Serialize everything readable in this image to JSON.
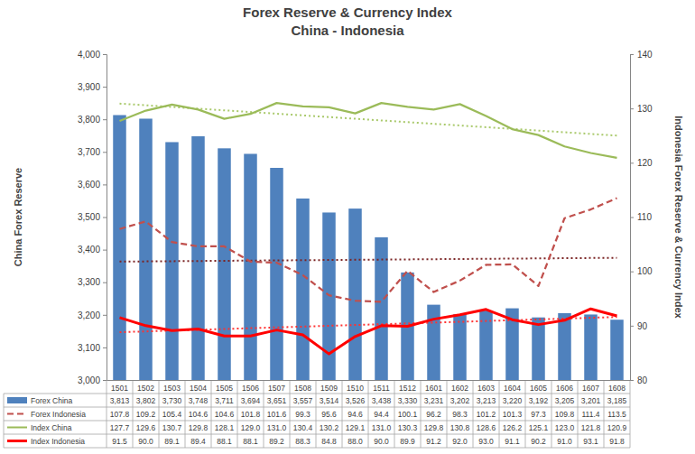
{
  "chart_data": {
    "type": "bar",
    "title": "Forex Reserve & Currency Index",
    "subtitle": "China - Indonesia",
    "y_label": "China Forex Reserve",
    "y2_label": "Indonesia Forex Reserve & Currency Index",
    "categories": [
      "1501",
      "1502",
      "1503",
      "1504",
      "1505",
      "1506",
      "1507",
      "1508",
      "1509",
      "1510",
      "1511",
      "1512",
      "1601",
      "1602",
      "1603",
      "1604",
      "1605",
      "1606",
      "1607",
      "1608"
    ],
    "ylim": [
      3000,
      4000
    ],
    "yticks": [
      {
        "value": 3000,
        "label": "3,000"
      },
      {
        "value": 3100,
        "label": "3,100"
      },
      {
        "value": 3200,
        "label": "3,200"
      },
      {
        "value": 3300,
        "label": "3,300"
      },
      {
        "value": 3400,
        "label": "3,400"
      },
      {
        "value": 3500,
        "label": "3,500"
      },
      {
        "value": 3600,
        "label": "3,600"
      },
      {
        "value": 3700,
        "label": "3,700"
      },
      {
        "value": 3800,
        "label": "3,800"
      },
      {
        "value": 3900,
        "label": "3,900"
      },
      {
        "value": 4000,
        "label": "4,000"
      }
    ],
    "y2lim": [
      80,
      140
    ],
    "y2ticks": [
      80,
      90,
      100,
      110,
      120,
      130,
      140
    ],
    "grid": false,
    "series": [
      {
        "name": "Forex China",
        "type": "bar",
        "color": "#4f81bd",
        "values": [
          3813,
          3802,
          3730,
          3748,
          3711,
          3694,
          3651,
          3557,
          3514,
          3526,
          3438,
          3330,
          3231,
          3202,
          3213,
          3220,
          3192,
          3205,
          3201,
          3185
        ],
        "value_labels": [
          "3,813",
          "3,802",
          "3,730",
          "3,748",
          "3,711",
          "3,694",
          "3,651",
          "3,557",
          "3,514",
          "3,526",
          "3,438",
          "3,330",
          "3,231",
          "3,202",
          "3,213",
          "3,220",
          "3,192",
          "3,205",
          "3,201",
          "3,185"
        ]
      },
      {
        "name": "Forex Indonesia",
        "type": "line",
        "axis": "y2",
        "color": "#c0504d",
        "line_style": "dashed",
        "values": [
          107.8,
          109.2,
          105.4,
          104.6,
          104.6,
          101.8,
          101.6,
          99.3,
          95.6,
          94.6,
          94.4,
          100.1,
          96.2,
          98.3,
          101.2,
          101.3,
          97.3,
          109.8,
          111.4,
          113.5
        ],
        "value_labels": [
          "107.8",
          "109.2",
          "105.4",
          "104.6",
          "104.6",
          "101.8",
          "101.6",
          "99.3",
          "95.6",
          "94.6",
          "94.4",
          "100.1",
          "96.2",
          "98.3",
          "101.2",
          "101.3",
          "97.3",
          "109.8",
          "111.4",
          "113.5"
        ]
      },
      {
        "name": "Index China",
        "type": "line",
        "axis": "y2",
        "color": "#9bbb59",
        "line_style": "solid",
        "values": [
          127.7,
          129.6,
          130.7,
          129.8,
          128.1,
          129.0,
          131.0,
          130.4,
          130.2,
          129.1,
          131.0,
          130.3,
          129.8,
          130.8,
          128.6,
          126.2,
          125.1,
          123.0,
          121.8,
          120.9
        ],
        "value_labels": [
          "127.7",
          "129.6",
          "130.7",
          "129.8",
          "128.1",
          "129.0",
          "131.0",
          "130.4",
          "130.2",
          "129.1",
          "131.0",
          "130.3",
          "129.8",
          "130.8",
          "128.6",
          "126.2",
          "125.1",
          "123.0",
          "121.8",
          "120.9"
        ]
      },
      {
        "name": "Index Indonesia",
        "type": "line",
        "axis": "y2",
        "color": "#ff0000",
        "line_style": "solid",
        "values": [
          91.5,
          90.0,
          89.1,
          89.4,
          88.1,
          88.1,
          89.2,
          88.3,
          84.8,
          88.0,
          90.0,
          89.9,
          91.2,
          92.0,
          93.0,
          91.1,
          90.2,
          91.0,
          93.1,
          91.8
        ],
        "value_labels": [
          "91.5",
          "90.0",
          "89.1",
          "89.4",
          "88.1",
          "88.1",
          "89.2",
          "88.3",
          "84.8",
          "88.0",
          "90.0",
          "89.9",
          "91.2",
          "92.0",
          "93.0",
          "91.1",
          "90.2",
          "91.0",
          "93.1",
          "91.8"
        ]
      }
    ],
    "trendlines": [
      {
        "axis": "y2",
        "color": "#a9c96b",
        "line_style": "dotted",
        "x": [
          "1501",
          "1608"
        ],
        "values": [
          130.9,
          125.0
        ]
      },
      {
        "axis": "y2",
        "color": "#7b2525",
        "line_style": "dotted",
        "x": [
          "1501",
          "1608"
        ],
        "values": [
          101.8,
          102.5
        ]
      },
      {
        "axis": "y2",
        "color": "#ff3333",
        "line_style": "dotted",
        "x": [
          "1501",
          "1608"
        ],
        "values": [
          88.8,
          91.6
        ]
      }
    ]
  }
}
